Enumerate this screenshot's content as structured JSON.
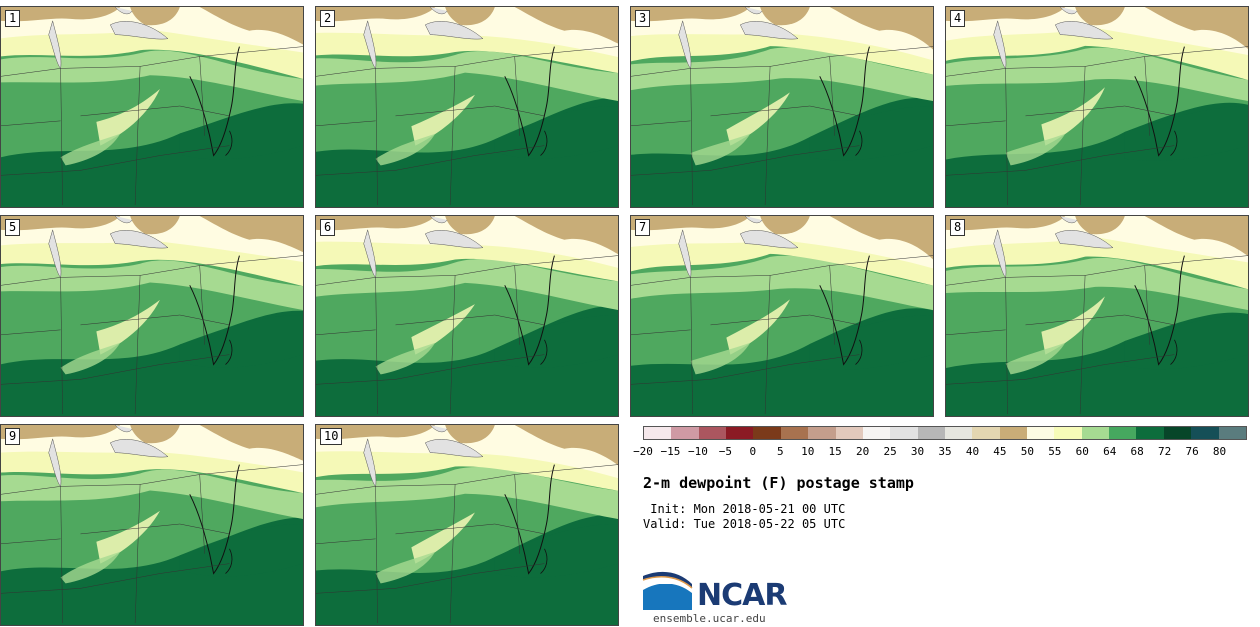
{
  "colors": {
    "bar": [
      "#f5e8eb",
      "#cf9aa4",
      "#ab565f",
      "#8b1a24",
      "#7b3a1a",
      "#a8724f",
      "#c49e8c",
      "#e2c9bc",
      "#f6f4f2",
      "#e2e2e2",
      "#b7b7b7",
      "#e6e6df",
      "#e3d6b1",
      "#c9ad78",
      "#fcfbe3",
      "#f6fbb8",
      "#a6db92",
      "#46a85f",
      "#0d6d3c",
      "#074629",
      "#154f57",
      "#5a7c7e"
    ],
    "land_dry": "#c8ad78",
    "land_dry_light": "#e1d7b2",
    "lake": "#e2e2e2",
    "cream": "#fffce2",
    "yellow": "#f5f9b7",
    "lightgreen": "#a6da91",
    "green": "#4fa85f",
    "darkgreen": "#0d6d3c"
  },
  "members": [
    "1",
    "2",
    "3",
    "4",
    "5",
    "6",
    "7",
    "8",
    "9",
    "10"
  ],
  "colorbar": {
    "ticks": [
      "−20",
      "−15",
      "−10",
      "−5",
      "0",
      "5",
      "10",
      "15",
      "20",
      "25",
      "30",
      "35",
      "40",
      "45",
      "50",
      "55",
      "60",
      "64",
      "68",
      "72",
      "76",
      "80"
    ]
  },
  "title": "2-m dewpoint (F) postage stamp",
  "init": " Init: Mon 2018-05-21 00 UTC",
  "valid": "Valid: Tue 2018-05-22 05 UTC",
  "logo": {
    "name": "NCAR",
    "url": "ensemble.ucar.edu"
  }
}
